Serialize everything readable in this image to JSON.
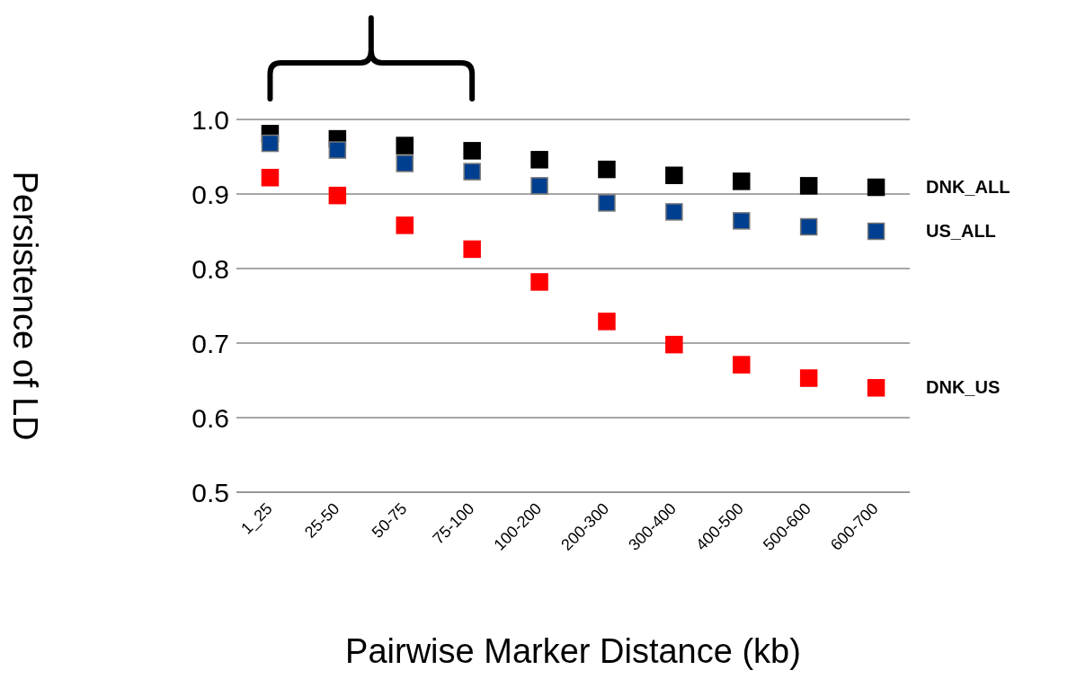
{
  "chart_data": {
    "type": "scatter",
    "xlabel": "Pairwise Marker Distance (kb)",
    "ylabel": "Persistence of LD",
    "categories": [
      "1_25",
      "25-50",
      "50-75",
      "75-100",
      "100-200",
      "200-300",
      "300-400",
      "400-500",
      "500-600",
      "600-700"
    ],
    "series": [
      {
        "name": "DNK_ALL",
        "color": "#000000",
        "values": [
          0.981,
          0.974,
          0.965,
          0.958,
          0.946,
          0.933,
          0.925,
          0.917,
          0.911,
          0.909
        ]
      },
      {
        "name": "US_ALL",
        "color": "#003f8f",
        "values": [
          0.968,
          0.959,
          0.941,
          0.93,
          0.911,
          0.888,
          0.876,
          0.864,
          0.856,
          0.85
        ]
      },
      {
        "name": "DNK_US",
        "color": "#ff0000",
        "values": [
          0.922,
          0.898,
          0.858,
          0.826,
          0.782,
          0.729,
          0.698,
          0.671,
          0.653,
          0.64
        ]
      }
    ],
    "ylim": [
      0.5,
      1.0
    ],
    "yticks": [
      {
        "value": 0.5,
        "label": "0.5"
      },
      {
        "value": 0.6,
        "label": "0.6"
      },
      {
        "value": 0.7,
        "label": "0.7"
      },
      {
        "value": 0.8,
        "label": "0.8"
      },
      {
        "value": 0.9,
        "label": "0.9"
      },
      {
        "value": 1,
        "label": "1.0"
      }
    ],
    "grid": "y",
    "marker": "square",
    "legend": "right"
  }
}
